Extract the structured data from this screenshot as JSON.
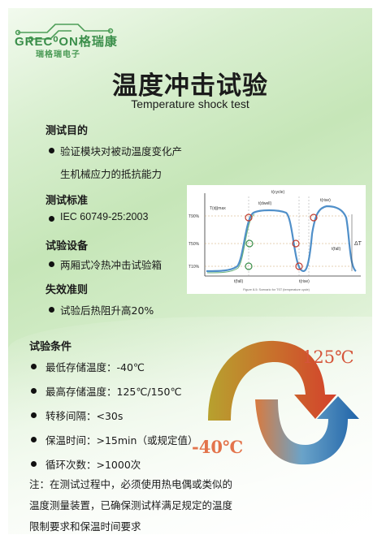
{
  "logo": {
    "brand": "GREC⁰ON格瑞康",
    "sub": "瑞格瑞电子"
  },
  "title": "温度冲击试验",
  "subtitle": "Temperature shock test",
  "sections": {
    "purpose": {
      "heading": "测试目的",
      "lines": [
        "验证模块对被动温度变化产",
        "生机械应力的抵抗能力"
      ]
    },
    "standard": {
      "heading": "测试标准",
      "item": "IEC 60749-25:2003"
    },
    "equipment": {
      "heading": "试验设备",
      "item": "两厢式冷热冲击试验箱"
    },
    "failure": {
      "heading": "失效准则",
      "item": "试验后热阻升高20%"
    },
    "conditions": {
      "heading": "试验条件",
      "items": [
        "最低存储温度：-40℃",
        "最高存储温度：125℃/150℃",
        "转移间隔：<30s",
        "保温时间：>15min（或规定值）",
        "循环次数：>1000次"
      ]
    }
  },
  "chart": {
    "labels": {
      "tmax": "T(dj)max",
      "tcycle": "t(cycle)",
      "tdwell": "t(dwell)",
      "t90": "T90%",
      "t50": "T50%",
      "t10": "T10%",
      "dt": "ΔT",
      "tfall": "t(fall)",
      "trise": "t(rise)"
    },
    "caption": "Figure 8-5: Scenario for TST (temperature cycle)"
  },
  "temps": {
    "hot": "125℃",
    "cold": "-40℃"
  },
  "note": {
    "lines": [
      "注：在测试过程中，必须使用热电偶或类似的",
      "温度测量装置，已确保测试样满足规定的温度",
      "限制要求和保温时间要求"
    ]
  },
  "colors": {
    "hot": "#d5553a",
    "cold": "#1f63a8",
    "logo": "#3a8e4a"
  }
}
